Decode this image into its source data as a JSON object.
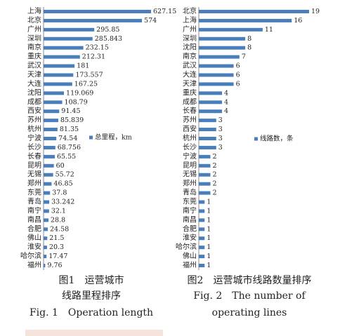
{
  "chart_data": [
    {
      "type": "bar",
      "orientation": "horizontal",
      "categories": [
        "上海",
        "北京",
        "广州",
        "深圳",
        "南京",
        "重庆",
        "武汉",
        "天津",
        "大连",
        "沈阳",
        "成都",
        "西安",
        "苏州",
        "杭州",
        "宁波",
        "长沙",
        "长春",
        "昆明",
        "无锡",
        "郑州",
        "东莞",
        "青岛",
        "南宁",
        "南昌",
        "合肥",
        "佛山",
        "淮安",
        "哈尔滨",
        "福州"
      ],
      "series": [
        {
          "name": "总里程，km",
          "color": "#4a7ebb",
          "values": [
            627.15,
            574,
            295.85,
            285.843,
            232.15,
            212.31,
            181,
            173.557,
            167.25,
            119.069,
            108.79,
            91.45,
            85.839,
            81.35,
            74.54,
            68.756,
            65.55,
            60,
            55.72,
            46.85,
            37.8,
            33.242,
            32.1,
            28.8,
            24.58,
            21.5,
            20.3,
            17.47,
            9.76
          ]
        }
      ],
      "caption": [
        "图1　运营城市",
        "线路里程排序",
        "Fig. 1　Operation length"
      ]
    },
    {
      "type": "bar",
      "orientation": "horizontal",
      "categories": [
        "北京",
        "上海",
        "广州",
        "深圳",
        "沈阳",
        "南京",
        "武汉",
        "大连",
        "天津",
        "重庆",
        "成都",
        "长春",
        "苏州",
        "西安",
        "杭州",
        "长沙",
        "宁波",
        "昆明",
        "无锡",
        "郑州",
        "青岛",
        "东莞",
        "南宁",
        "南昌",
        "合肥",
        "淮安",
        "哈尔滨",
        "佛山",
        "福州"
      ],
      "series": [
        {
          "name": "线路数，条",
          "color": "#4a7ebb",
          "values": [
            19,
            16,
            11,
            8,
            8,
            7,
            6,
            6,
            6,
            4,
            4,
            4,
            3,
            3,
            3,
            3,
            2,
            2,
            2,
            2,
            2,
            1,
            1,
            1,
            1,
            1,
            1,
            1,
            1
          ]
        }
      ],
      "caption": [
        "图2　运营城市线路数量排序",
        "Fig. 2　The number of",
        "operating lines"
      ]
    }
  ]
}
